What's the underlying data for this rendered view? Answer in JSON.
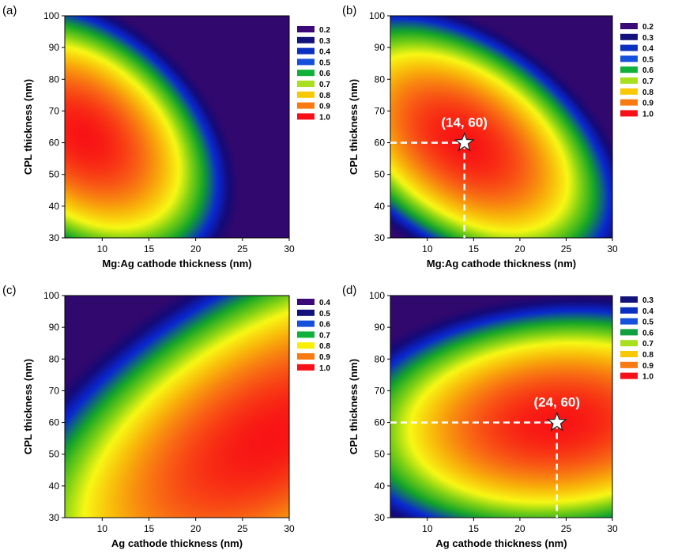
{
  "chart_data": [
    {
      "type": "heatmap",
      "label": "(a)",
      "xlabel": "Mg:Ag cathode thickness (nm)",
      "ylabel": "CPL thickness (nm)",
      "xlim": [
        6,
        30
      ],
      "ylim": [
        30,
        100
      ],
      "xticks": [
        10,
        15,
        20,
        25,
        30
      ],
      "yticks": [
        30,
        40,
        50,
        60,
        70,
        80,
        90,
        100
      ],
      "legend": [
        "0.2",
        "0.3",
        "0.4",
        "0.5",
        "0.6",
        "0.7",
        "0.8",
        "0.9",
        "1.0"
      ],
      "legend_colors": [
        "#3b0a78",
        "#12127a",
        "#0b2fc0",
        "#1450dc",
        "#10b03a",
        "#a8e020",
        "#f8c800",
        "#f87a10",
        "#f81018"
      ],
      "optimum": [
        8,
        62
      ],
      "annotation": null
    },
    {
      "type": "heatmap",
      "label": "(b)",
      "xlabel": "Mg:Ag cathode thickness (nm)",
      "ylabel": "CPL thickness (nm)",
      "xlim": [
        6,
        30
      ],
      "ylim": [
        30,
        100
      ],
      "xticks": [
        10,
        15,
        20,
        25,
        30
      ],
      "yticks": [
        30,
        40,
        50,
        60,
        70,
        80,
        90,
        100
      ],
      "legend": [
        "0.2",
        "0.3",
        "0.4",
        "0.5",
        "0.6",
        "0.7",
        "0.8",
        "0.9",
        "1.0"
      ],
      "legend_colors": [
        "#3b0a78",
        "#12127a",
        "#0b2fc0",
        "#1450dc",
        "#10b03a",
        "#a8e020",
        "#f8c800",
        "#f87a10",
        "#f81018"
      ],
      "optimum": [
        14,
        60
      ],
      "annotation": {
        "text": "(14, 60)",
        "x": 14,
        "y": 60
      }
    },
    {
      "type": "heatmap",
      "label": "(c)",
      "xlabel": "Ag cathode thickness (nm)",
      "ylabel": "CPL thickness (nm)",
      "xlim": [
        6,
        30
      ],
      "ylim": [
        30,
        100
      ],
      "xticks": [
        10,
        15,
        20,
        25,
        30
      ],
      "yticks": [
        30,
        40,
        50,
        60,
        70,
        80,
        90,
        100
      ],
      "legend": [
        "0.4",
        "0.5",
        "0.6",
        "0.7",
        "0.8",
        "0.9",
        "1.0"
      ],
      "legend_colors": [
        "#3b0a78",
        "#12127a",
        "#1450dc",
        "#10b03a",
        "#f8f000",
        "#f87a10",
        "#f81018"
      ],
      "optimum": [
        24,
        62
      ],
      "annotation": null
    },
    {
      "type": "heatmap",
      "label": "(d)",
      "xlabel": "Ag cathode thickness (nm)",
      "ylabel": "CPL thickness (nm)",
      "xlim": [
        6,
        30
      ],
      "ylim": [
        30,
        100
      ],
      "xticks": [
        10,
        15,
        20,
        25,
        30
      ],
      "yticks": [
        30,
        40,
        50,
        60,
        70,
        80,
        90,
        100
      ],
      "legend": [
        "0.3",
        "0.4",
        "0.5",
        "0.6",
        "0.7",
        "0.8",
        "0.9",
        "1.0"
      ],
      "legend_colors": [
        "#12127a",
        "#0b2fc0",
        "#1450dc",
        "#10a040",
        "#a8e020",
        "#f8c800",
        "#f87a10",
        "#f81018"
      ],
      "optimum": [
        24,
        60
      ],
      "annotation": {
        "text": "(24, 60)",
        "x": 24,
        "y": 60
      }
    }
  ]
}
